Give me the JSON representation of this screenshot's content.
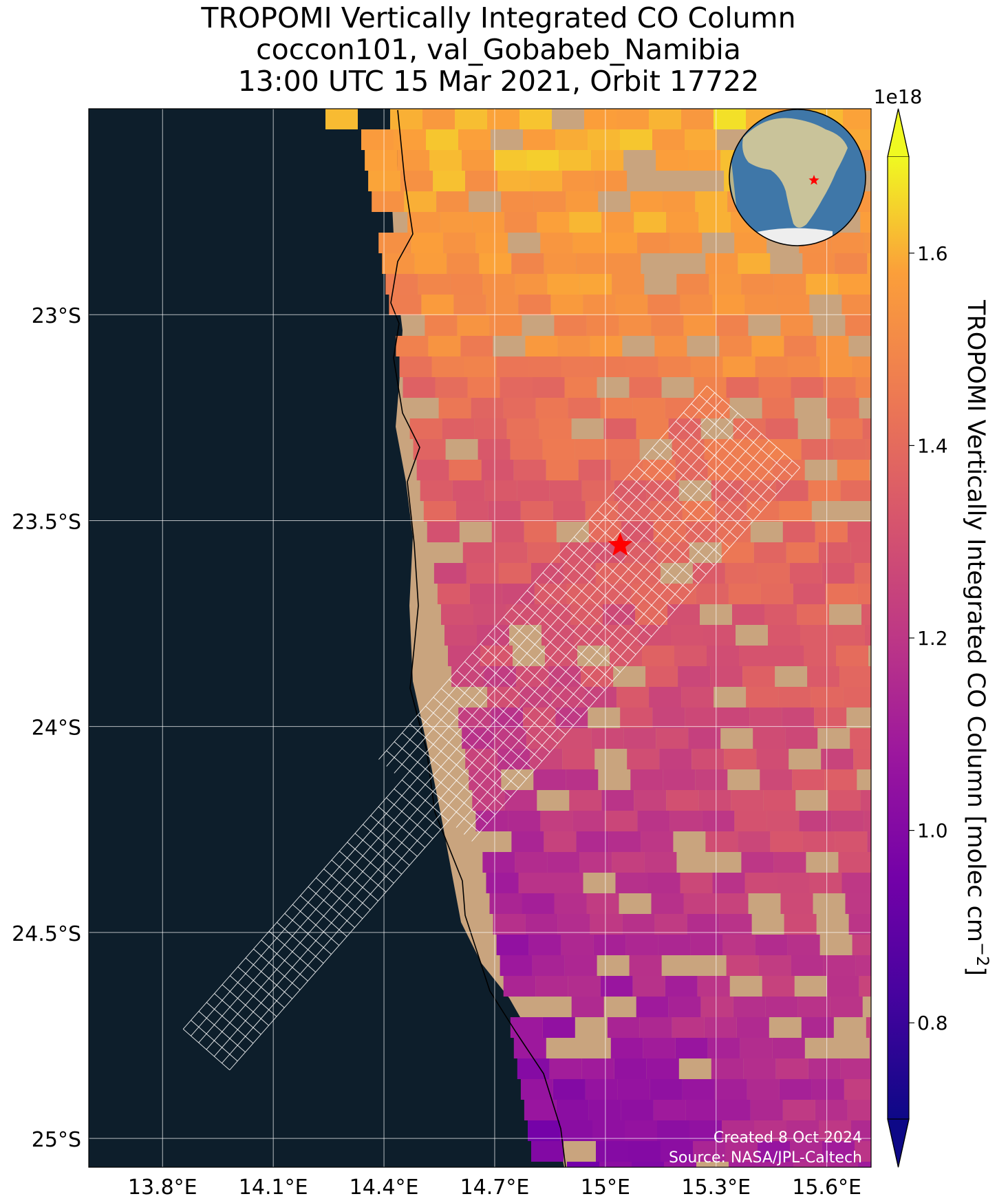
{
  "title": {
    "line1": "TROPOMI Vertically Integrated CO Column",
    "line2": "coccon101, val_Gobabeb_Namibia",
    "line3": "13:00 UTC 15 Mar 2021, Orbit 17722"
  },
  "map": {
    "lat_ticks": [
      {
        "lat": -23.0,
        "label": "23°S"
      },
      {
        "lat": -23.5,
        "label": "23.5°S"
      },
      {
        "lat": -24.0,
        "label": "24°S"
      },
      {
        "lat": -24.5,
        "label": "24.5°S"
      },
      {
        "lat": -25.0,
        "label": "25°S"
      }
    ],
    "lon_ticks": [
      {
        "lon": 13.8,
        "label": "13.8°E"
      },
      {
        "lon": 14.1,
        "label": "14.1°E"
      },
      {
        "lon": 14.4,
        "label": "14.4°E"
      },
      {
        "lon": 14.7,
        "label": "14.7°E"
      },
      {
        "lon": 15.0,
        "label": "15°E"
      },
      {
        "lon": 15.3,
        "label": "15.3°E"
      },
      {
        "lon": 15.6,
        "label": "15.6°E"
      }
    ],
    "extent": {
      "lon_min": 13.6,
      "lon_max": 15.72,
      "lat_min": -25.07,
      "lat_max": -22.5
    },
    "site_marker": {
      "lon": 15.04,
      "lat": -23.56,
      "color": "#ff0000",
      "shape": "star-icon"
    },
    "ocean_color": "#0d1e2b",
    "desert_color": "#c9a47e",
    "credit_line1": "Created 8 Oct 2024",
    "credit_line2": "Source: NASA/JPL-Caltech"
  },
  "colorbar": {
    "label": "TROPOMI Vertically Integrated CO Column [molec cm",
    "label_superscript": "−2",
    "label_close": "]",
    "exponent": "1e18",
    "vmin": 0.7,
    "vmax": 1.7,
    "colormap": "plasma",
    "extend": "both",
    "ticks": [
      {
        "value": 0.8,
        "label": "0.8"
      },
      {
        "value": 1.0,
        "label": "1.0"
      },
      {
        "value": 1.2,
        "label": "1.2"
      },
      {
        "value": 1.4,
        "label": "1.4"
      },
      {
        "value": 1.6,
        "label": "1.6"
      }
    ]
  },
  "inset_globe": {
    "ocean": "#3f77a8",
    "land": "#c9c39a",
    "marker_color": "#ff0000"
  }
}
